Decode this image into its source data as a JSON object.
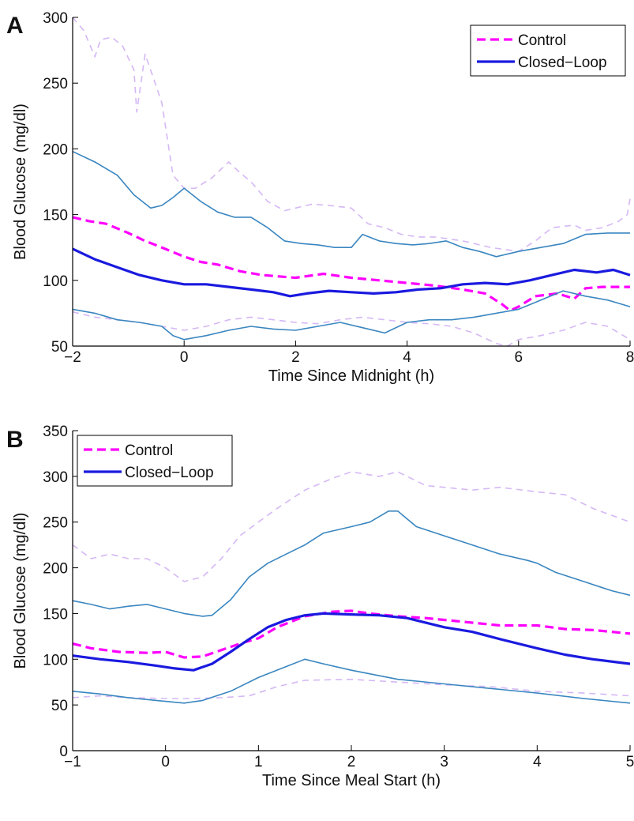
{
  "chart_data": [
    {
      "panel": "A",
      "type": "line",
      "xlabel": "Time Since Midnight (h)",
      "ylabel": "Blood Glucose (mg/dl)",
      "xlim": [
        -2,
        8
      ],
      "ylim": [
        50,
        300
      ],
      "xticks": [
        "−2",
        "0",
        "2",
        "4",
        "6",
        "8"
      ],
      "yticks": [
        "50",
        "100",
        "150",
        "200",
        "250",
        "300"
      ],
      "legend": {
        "position": "top-right",
        "entries": [
          "Control",
          "Closed−Loop"
        ]
      },
      "series": [
        {
          "name": "Control",
          "role": "mean",
          "style": "dashed",
          "color": "#ff00ff",
          "x": [
            -2,
            -1.7,
            -1.4,
            -1.0,
            -0.7,
            -0.4,
            0,
            0.3,
            0.6,
            1.0,
            1.4,
            2.0,
            2.5,
            3.0,
            3.5,
            4.0,
            4.5,
            5.0,
            5.4,
            5.7,
            5.85,
            6.0,
            6.3,
            6.7,
            7.0,
            7.2,
            7.5,
            8.0
          ],
          "y": [
            148,
            145,
            143,
            136,
            130,
            125,
            118,
            114,
            112,
            107,
            104,
            102,
            105,
            102,
            100,
            98,
            96,
            93,
            90,
            82,
            77,
            80,
            88,
            90,
            86,
            94,
            95,
            95
          ]
        },
        {
          "name": "Control",
          "role": "upper-band",
          "style": "dashed-thin",
          "color": "#d5b8f5",
          "x": [
            -2,
            -1.8,
            -1.6,
            -1.5,
            -1.3,
            -1.1,
            -0.9,
            -0.85,
            -0.7,
            -0.6,
            -0.4,
            -0.2,
            0,
            0.2,
            0.5,
            0.8,
            1.0,
            1.2,
            1.5,
            1.8,
            2.0,
            2.3,
            2.6,
            3.0,
            3.3,
            3.6,
            3.9,
            4.2,
            4.5,
            5.0,
            5.5,
            6.0,
            6.3,
            6.6,
            7.0,
            7.2,
            7.5,
            7.8,
            7.95,
            8.0
          ],
          "y": [
            300,
            290,
            270,
            283,
            285,
            278,
            260,
            228,
            272,
            260,
            235,
            180,
            170,
            170,
            178,
            190,
            182,
            175,
            160,
            153,
            155,
            158,
            157,
            155,
            143,
            140,
            135,
            133,
            133,
            130,
            125,
            122,
            130,
            140,
            142,
            138,
            140,
            145,
            150,
            162
          ]
        },
        {
          "name": "Control",
          "role": "lower-band",
          "style": "dashed-thin",
          "color": "#d5b8f5",
          "x": [
            -2,
            -1.6,
            -1.2,
            -0.8,
            -0.4,
            0,
            0.4,
            0.8,
            1.2,
            1.6,
            2.0,
            2.4,
            2.8,
            3.2,
            3.6,
            4.0,
            4.4,
            4.8,
            5.2,
            5.6,
            5.8,
            6.0,
            6.4,
            6.8,
            7.2,
            7.6,
            8.0
          ],
          "y": [
            76,
            72,
            70,
            68,
            65,
            62,
            65,
            70,
            72,
            70,
            68,
            67,
            70,
            72,
            70,
            68,
            67,
            65,
            60,
            52,
            50,
            55,
            58,
            62,
            68,
            65,
            55
          ]
        },
        {
          "name": "Closed−Loop",
          "role": "mean",
          "style": "solid",
          "color": "#1a1adf",
          "x": [
            -2,
            -1.6,
            -1.2,
            -0.8,
            -0.4,
            0,
            0.4,
            0.8,
            1.2,
            1.6,
            1.9,
            2.2,
            2.6,
            3.0,
            3.4,
            3.8,
            4.2,
            4.6,
            5.0,
            5.4,
            5.8,
            6.2,
            6.6,
            7.0,
            7.4,
            7.7,
            8.0
          ],
          "y": [
            124,
            116,
            110,
            104,
            100,
            97,
            97,
            95,
            93,
            91,
            88,
            90,
            92,
            91,
            90,
            91,
            93,
            94,
            97,
            98,
            97,
            100,
            104,
            108,
            106,
            108,
            104
          ]
        },
        {
          "name": "Closed−Loop",
          "role": "upper-band",
          "style": "solid-thin",
          "color": "#3a86c0",
          "x": [
            -2,
            -1.6,
            -1.2,
            -0.9,
            -0.6,
            -0.4,
            -0.2,
            0,
            0.3,
            0.6,
            0.9,
            1.2,
            1.5,
            1.8,
            2.1,
            2.4,
            2.7,
            3.0,
            3.2,
            3.5,
            3.8,
            4.1,
            4.4,
            4.7,
            5.0,
            5.3,
            5.6,
            6.0,
            6.4,
            6.8,
            7.2,
            7.6,
            8.0
          ],
          "y": [
            198,
            190,
            180,
            165,
            155,
            157,
            163,
            170,
            160,
            152,
            148,
            148,
            140,
            130,
            128,
            127,
            125,
            125,
            135,
            130,
            128,
            127,
            128,
            130,
            125,
            122,
            118,
            122,
            125,
            128,
            135,
            136,
            136
          ]
        },
        {
          "name": "Closed−Loop",
          "role": "lower-band",
          "style": "solid-thin",
          "color": "#3a86c0",
          "x": [
            -2,
            -1.6,
            -1.2,
            -0.8,
            -0.4,
            -0.2,
            0,
            0.4,
            0.8,
            1.2,
            1.6,
            2.0,
            2.4,
            2.8,
            3.2,
            3.6,
            4.0,
            4.4,
            4.8,
            5.2,
            5.6,
            6.0,
            6.4,
            6.8,
            7.2,
            7.6,
            8.0
          ],
          "y": [
            78,
            75,
            70,
            68,
            65,
            58,
            55,
            58,
            62,
            65,
            63,
            62,
            65,
            68,
            64,
            60,
            68,
            70,
            70,
            72,
            75,
            78,
            85,
            92,
            88,
            85,
            80
          ]
        }
      ]
    },
    {
      "panel": "B",
      "type": "line",
      "xlabel": "Time Since Meal Start (h)",
      "ylabel": "Blood Glucose (mg/dl)",
      "xlim": [
        -1,
        5
      ],
      "ylim": [
        0,
        350
      ],
      "xticks": [
        "−1",
        "0",
        "1",
        "2",
        "3",
        "4",
        "5"
      ],
      "yticks": [
        "0",
        "50",
        "100",
        "150",
        "200",
        "250",
        "300",
        "350"
      ],
      "legend": {
        "position": "top-left",
        "entries": [
          "Control",
          "Closed−Loop"
        ]
      },
      "series": [
        {
          "name": "Control",
          "role": "mean",
          "style": "dashed",
          "color": "#ff00ff",
          "x": [
            -1,
            -0.8,
            -0.5,
            -0.2,
            0,
            0.2,
            0.4,
            0.6,
            0.8,
            1.0,
            1.2,
            1.5,
            1.8,
            2.0,
            2.2,
            2.5,
            2.8,
            3.0,
            3.3,
            3.6,
            4.0,
            4.3,
            4.6,
            5.0
          ],
          "y": [
            117,
            112,
            108,
            107,
            108,
            102,
            103,
            110,
            117,
            123,
            135,
            147,
            152,
            153,
            150,
            147,
            145,
            143,
            140,
            137,
            137,
            133,
            132,
            128
          ]
        },
        {
          "name": "Control",
          "role": "upper-band",
          "style": "dashed-thin",
          "color": "#d5b8f5",
          "x": [
            -1,
            -0.8,
            -0.6,
            -0.4,
            -0.2,
            0,
            0.2,
            0.4,
            0.6,
            0.8,
            1.0,
            1.2,
            1.5,
            1.8,
            2.0,
            2.3,
            2.5,
            2.8,
            3.0,
            3.3,
            3.6,
            4.0,
            4.3,
            4.6,
            5.0
          ],
          "y": [
            225,
            210,
            215,
            210,
            210,
            200,
            185,
            190,
            210,
            235,
            250,
            265,
            285,
            298,
            305,
            300,
            305,
            290,
            288,
            285,
            288,
            283,
            280,
            265,
            250
          ]
        },
        {
          "name": "Control",
          "role": "lower-band",
          "style": "dashed-thin",
          "color": "#d5b8f5",
          "x": [
            -1,
            -0.7,
            -0.4,
            0,
            0.3,
            0.6,
            0.9,
            1.2,
            1.5,
            2.0,
            2.5,
            3.0,
            3.5,
            4.0,
            4.5,
            5.0
          ],
          "y": [
            58,
            60,
            58,
            57,
            57,
            58,
            60,
            70,
            77,
            78,
            75,
            72,
            70,
            65,
            63,
            60
          ]
        },
        {
          "name": "Closed−Loop",
          "role": "mean",
          "style": "solid",
          "color": "#1a1adf",
          "x": [
            -1,
            -0.7,
            -0.4,
            -0.1,
            0.1,
            0.3,
            0.5,
            0.7,
            0.9,
            1.1,
            1.3,
            1.5,
            1.7,
            2.0,
            2.3,
            2.6,
            3.0,
            3.3,
            3.6,
            4.0,
            4.3,
            4.6,
            5.0
          ],
          "y": [
            104,
            100,
            97,
            93,
            90,
            88,
            95,
            108,
            122,
            135,
            143,
            148,
            150,
            149,
            148,
            145,
            135,
            130,
            122,
            112,
            105,
            100,
            95
          ]
        },
        {
          "name": "Closed−Loop",
          "role": "upper-band",
          "style": "solid-thin",
          "color": "#3a86c0",
          "x": [
            -1,
            -0.8,
            -0.6,
            -0.4,
            -0.2,
            0,
            0.2,
            0.4,
            0.5,
            0.7,
            0.9,
            1.1,
            1.3,
            1.5,
            1.7,
            2.0,
            2.2,
            2.4,
            2.5,
            2.7,
            3.0,
            3.3,
            3.6,
            3.9,
            4.0,
            4.2,
            4.5,
            4.8,
            5.0
          ],
          "y": [
            164,
            160,
            155,
            158,
            160,
            155,
            150,
            147,
            148,
            165,
            190,
            205,
            215,
            225,
            238,
            245,
            250,
            262,
            262,
            245,
            235,
            225,
            215,
            208,
            205,
            195,
            185,
            175,
            170
          ]
        },
        {
          "name": "Closed−Loop",
          "role": "lower-band",
          "style": "solid-thin",
          "color": "#3a86c0",
          "x": [
            -1,
            -0.7,
            -0.4,
            -0.1,
            0.2,
            0.4,
            0.7,
            1.0,
            1.3,
            1.5,
            1.7,
            2.0,
            2.5,
            3.0,
            3.5,
            4.0,
            4.5,
            5.0
          ],
          "y": [
            65,
            62,
            58,
            55,
            52,
            55,
            65,
            80,
            92,
            100,
            95,
            88,
            78,
            73,
            68,
            63,
            57,
            52
          ]
        }
      ]
    }
  ]
}
